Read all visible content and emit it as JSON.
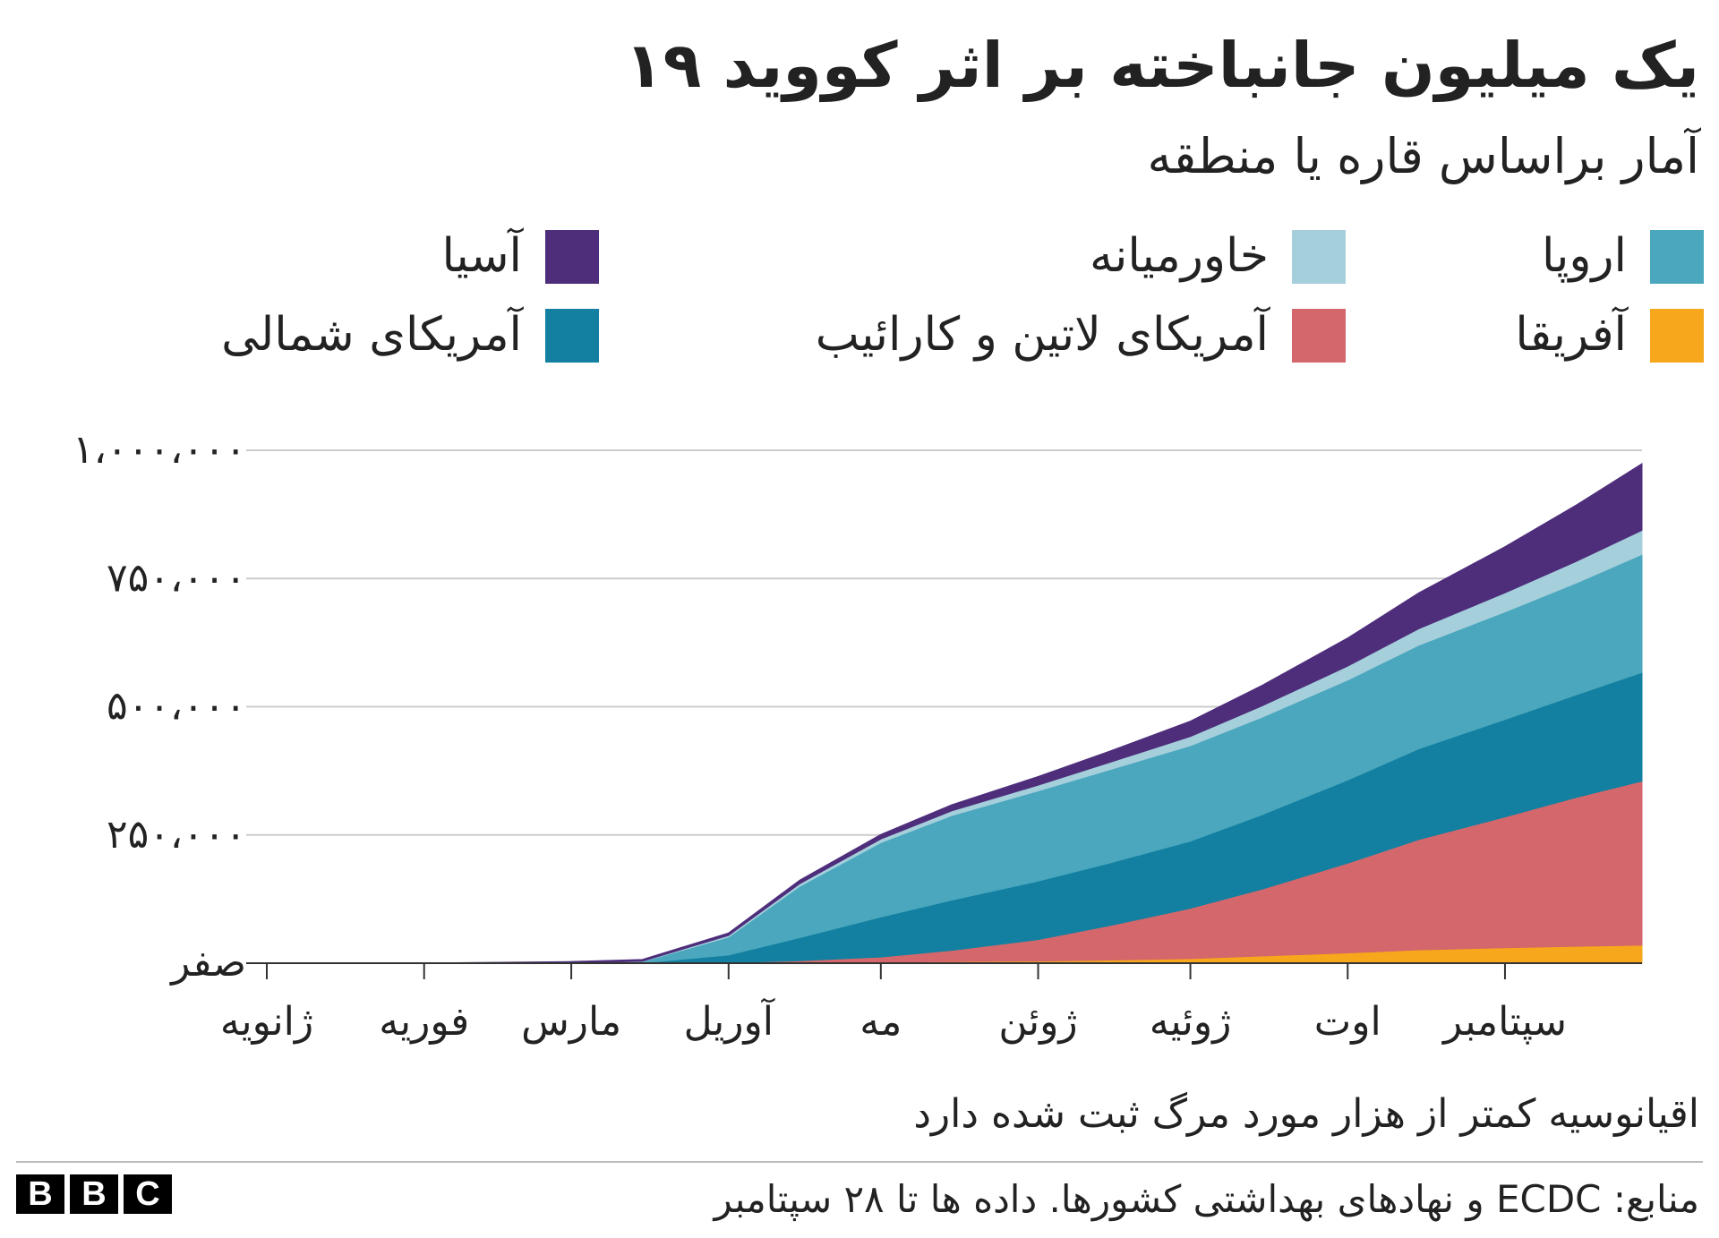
{
  "title": "یک میلیون جانباخته بر اثر کووید ۱۹",
  "subtitle": "آمار براساس قاره یا منطقه",
  "note": "اقیانوسیه کمتر از هزار مورد مرگ ثبت شده دارد",
  "source": "منابع: ECDC و نهادهای بهداشتی کشورها. داده ها تا ۲۸ سپتامبر",
  "logo_text": [
    "B",
    "B",
    "C"
  ],
  "legend": [
    {
      "label": "اروپا",
      "color": "#4aa7bd"
    },
    {
      "label": "خاورمیانه",
      "color": "#a6cfdc"
    },
    {
      "label": "آسیا",
      "color": "#4e2e7b"
    },
    {
      "label": "آفریقا",
      "color": "#f6a71c"
    },
    {
      "label": "آمریکای لاتین و کارائیب",
      "color": "#d4676b"
    },
    {
      "label": "آمریکای شمالی",
      "color": "#1380a1"
    }
  ],
  "chart_data": {
    "type": "area",
    "stacked": true,
    "ylim": [
      0,
      1000000
    ],
    "y_ticks": [
      0,
      250000,
      500000,
      750000,
      1000000
    ],
    "y_tick_labels": [
      "صفر",
      "۲۵۰،۰۰۰",
      "۵۰۰،۰۰۰",
      "۷۵۰،۰۰۰",
      "۱،۰۰۰،۰۰۰"
    ],
    "x_tick_labels": [
      "ژانویه",
      "فوریه",
      "مارس",
      "آوریل",
      "مه",
      "ژوئن",
      "ژوئیه",
      "اوت",
      "سپتامبر"
    ],
    "x": [
      "2020-01-01",
      "2020-02-01",
      "2020-03-01",
      "2020-03-15",
      "2020-04-01",
      "2020-04-15",
      "2020-05-01",
      "2020-05-15",
      "2020-06-01",
      "2020-06-15",
      "2020-07-01",
      "2020-07-15",
      "2020-08-01",
      "2020-08-15",
      "2020-09-01",
      "2020-09-15",
      "2020-09-28"
    ],
    "series": [
      {
        "name": "آفریقا",
        "color": "#f6a71c",
        "values": [
          0,
          0,
          0,
          0,
          200,
          800,
          2000,
          3000,
          4000,
          6000,
          9000,
          14000,
          20000,
          26000,
          30000,
          33000,
          35000
        ]
      },
      {
        "name": "آمریکای لاتین و کارائیب",
        "color": "#d4676b",
        "values": [
          0,
          0,
          0,
          0,
          800,
          4000,
          10000,
          22000,
          42000,
          67000,
          98000,
          130000,
          175000,
          215000,
          255000,
          290000,
          320000
        ]
      },
      {
        "name": "آمریکای شمالی",
        "color": "#1380a1",
        "values": [
          0,
          0,
          0,
          500,
          15000,
          45000,
          78000,
          98000,
          114000,
          122000,
          131000,
          145000,
          162000,
          177000,
          190000,
          200000,
          212000
        ]
      },
      {
        "name": "اروپا",
        "color": "#4aa7bd",
        "values": [
          0,
          0,
          100,
          2500,
          35000,
          100000,
          145000,
          165000,
          176000,
          182000,
          186000,
          190000,
          195000,
          202000,
          210000,
          218000,
          230000
        ]
      },
      {
        "name": "خاورمیانه",
        "color": "#a6cfdc",
        "values": [
          0,
          0,
          100,
          800,
          3000,
          5000,
          7000,
          9000,
          11000,
          14000,
          18000,
          22000,
          27000,
          32000,
          37000,
          42000,
          47000
        ]
      },
      {
        "name": "آسیا",
        "color": "#4e2e7b",
        "values": [
          0,
          200,
          3000,
          3500,
          5000,
          7000,
          9000,
          12000,
          17000,
          22000,
          30000,
          40000,
          55000,
          70000,
          90000,
          110000,
          130000
        ]
      }
    ]
  }
}
